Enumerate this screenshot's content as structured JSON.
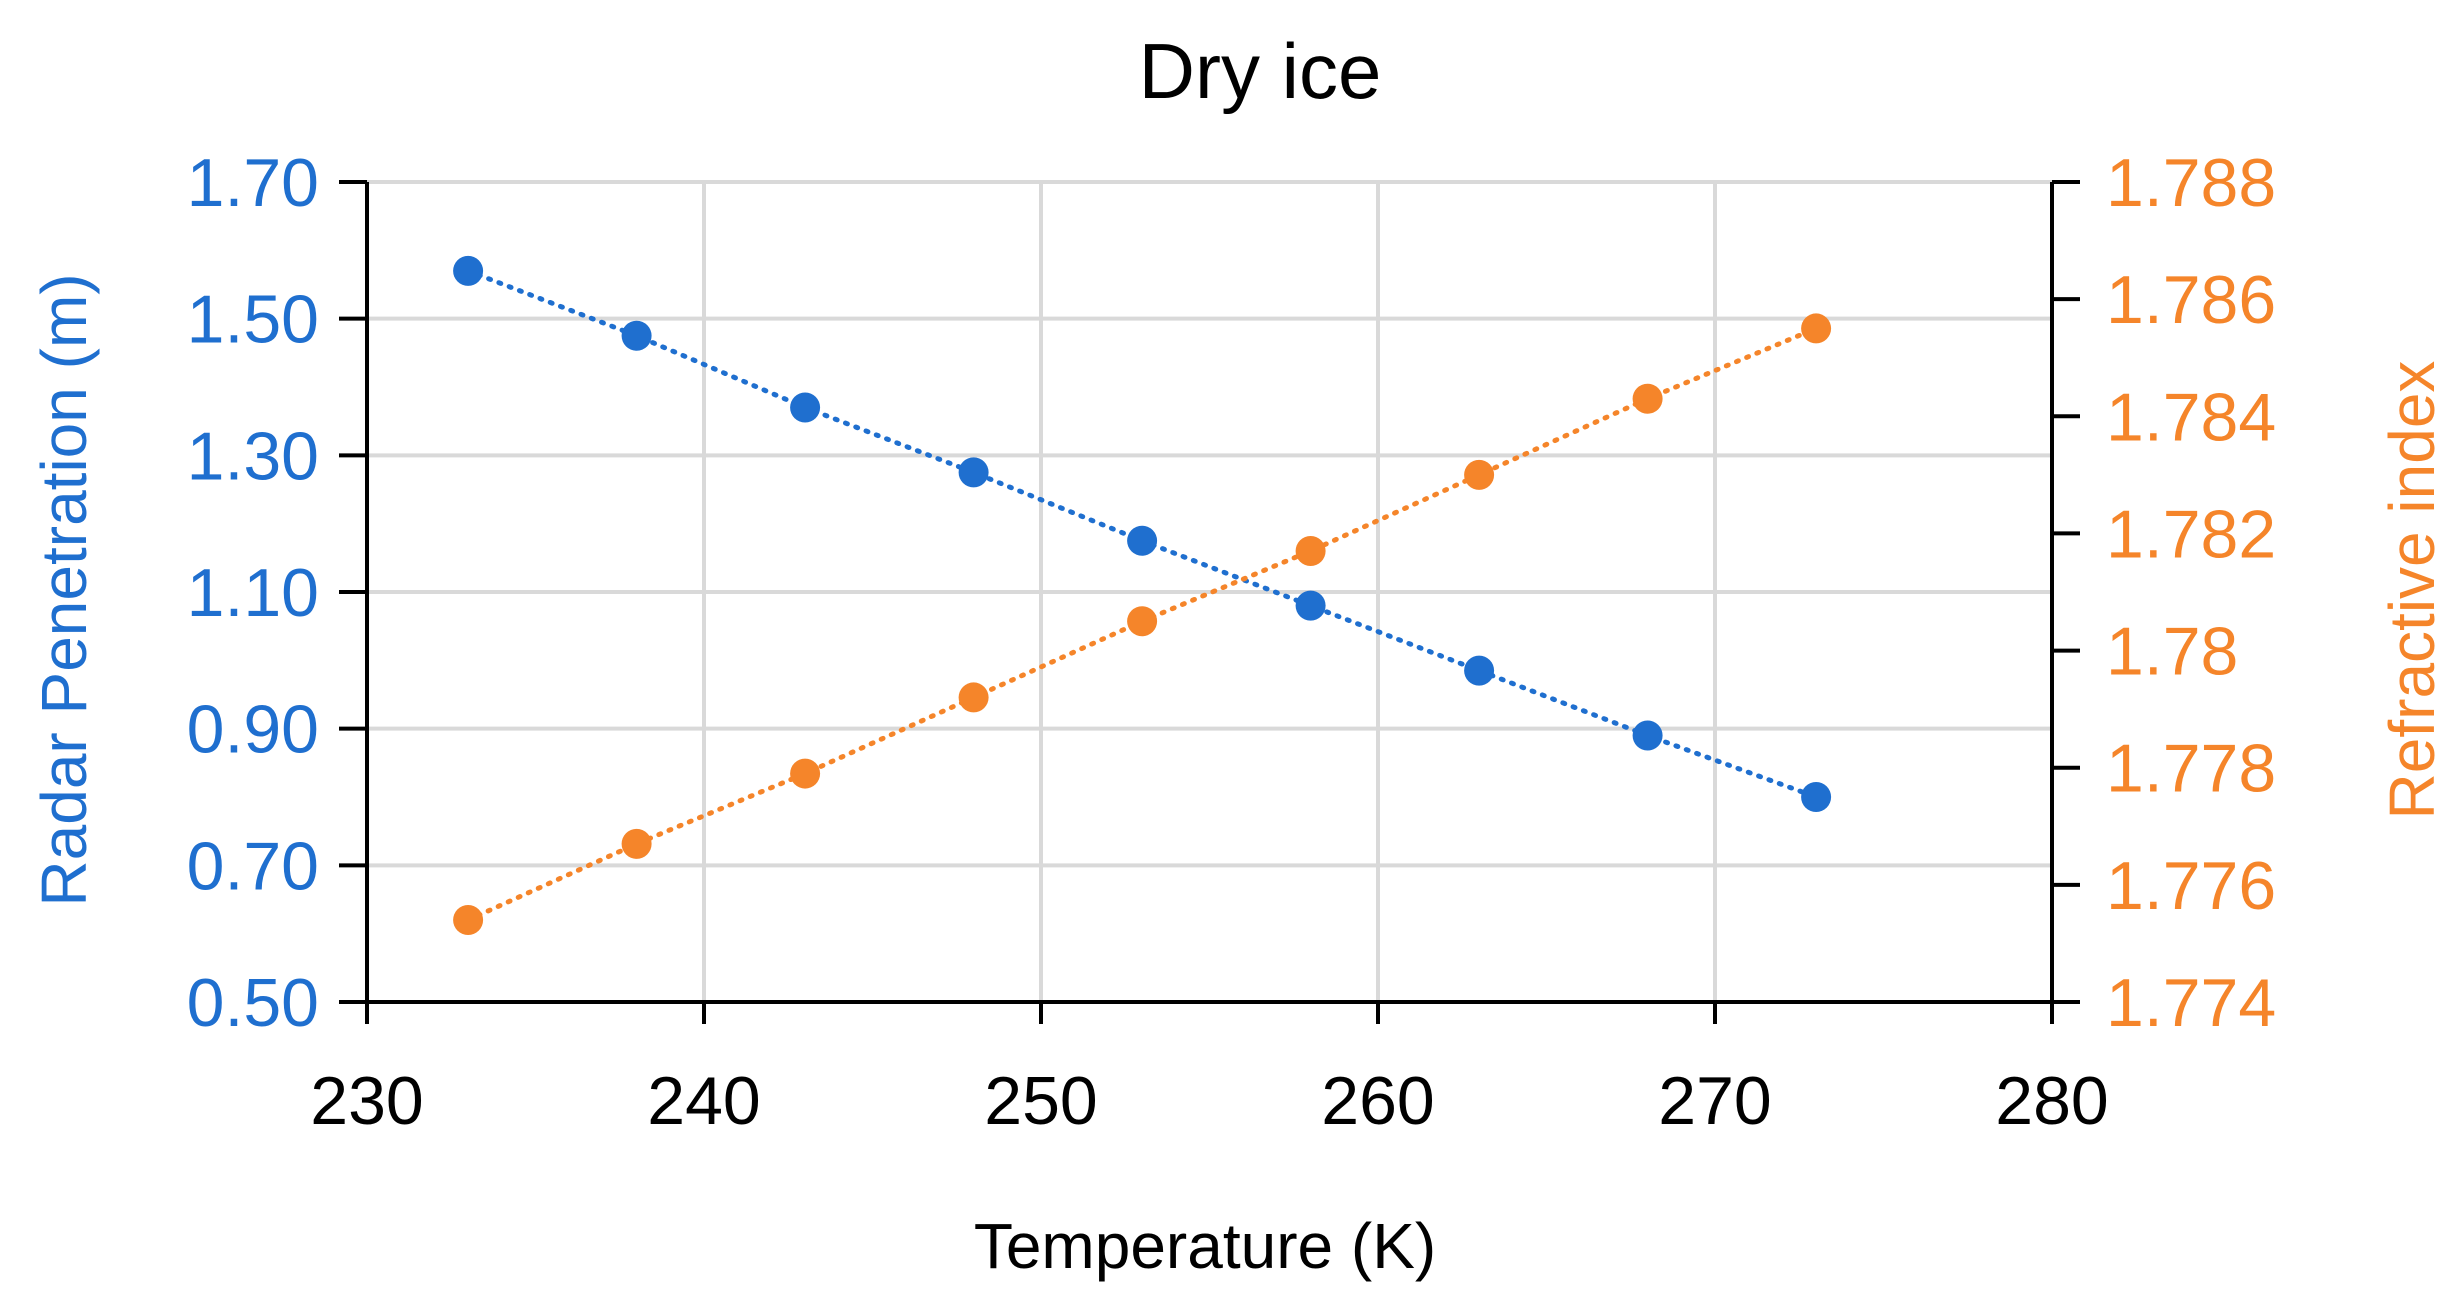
{
  "chart_data": {
    "type": "line",
    "title": "Dry ice",
    "xlabel": "Temperature (K)",
    "ylabel_left": "Radar Penetration (m)",
    "ylabel_right": "Refractive index",
    "xlim": [
      230,
      280
    ],
    "ylim_left": [
      0.5,
      1.7
    ],
    "ylim_right": [
      1.774,
      1.788
    ],
    "xticks": [
      "230",
      "240",
      "250",
      "260",
      "270",
      "280"
    ],
    "yticks_left": [
      "0.50",
      "0.70",
      "0.90",
      "1.10",
      "1.30",
      "1.50",
      "1.70"
    ],
    "yticks_right": [
      "1.774",
      "1.776",
      "1.778",
      "1.78",
      "1.782",
      "1.784",
      "1.786",
      "1.788"
    ],
    "grid": true,
    "series": [
      {
        "name": "Radar Penetration (m)",
        "axis": "left",
        "color": "#1f6fcf",
        "line_style": "dotted",
        "x": [
          233,
          238,
          243,
          248,
          253,
          258,
          263,
          268,
          273
        ],
        "values": [
          1.57,
          1.475,
          1.37,
          1.275,
          1.175,
          1.08,
          0.985,
          0.89,
          0.8
        ]
      },
      {
        "name": "Refractive index",
        "axis": "right",
        "color": "#f5852a",
        "line_style": "dotted",
        "x": [
          233,
          238,
          243,
          248,
          253,
          258,
          263,
          268,
          273
        ],
        "values": [
          1.7754,
          1.7767,
          1.7779,
          1.7792,
          1.7805,
          1.7817,
          1.783,
          1.7843,
          1.7855
        ]
      }
    ],
    "colors": {
      "left_axis": "#1f6fcf",
      "right_axis": "#f5852a",
      "text": "#000000",
      "grid": "#d9d9d9"
    }
  }
}
